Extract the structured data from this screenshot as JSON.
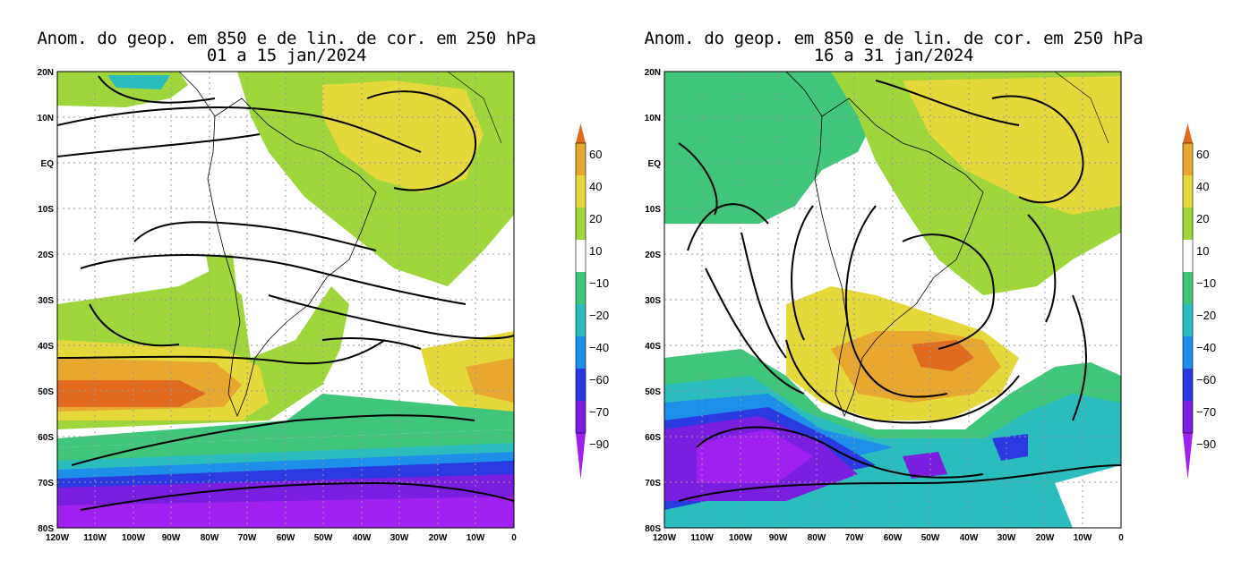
{
  "maps": [
    {
      "title_line1": "Anom. do geop. em 850 e de lin. de cor. em 250 hPa",
      "title_line2": "01 a 15 jan/2024"
    },
    {
      "title_line1": "Anom. do geop. em 850 e de lin. de cor. em 250 hPa",
      "title_line2": "16 a 31 jan/2024"
    }
  ],
  "axes": {
    "lat_labels": [
      "20N",
      "10N",
      "EQ",
      "10S",
      "20S",
      "30S",
      "40S",
      "50S",
      "60S",
      "70S",
      "80S"
    ],
    "lon_labels": [
      "120W",
      "110W",
      "100W",
      "90W",
      "80W",
      "70W",
      "60W",
      "50W",
      "40W",
      "30W",
      "20W",
      "10W",
      "0"
    ]
  },
  "colorbar": {
    "labels": [
      "60",
      "40",
      "20",
      "10",
      "−10",
      "−20",
      "−40",
      "−60",
      "−70",
      "−90"
    ],
    "colors": [
      "#e06b1f",
      "#e8a830",
      "#e4d83a",
      "#9fd63c",
      "#ffffff",
      "#3fc67a",
      "#2bbdbd",
      "#1e8fe8",
      "#2a39e0",
      "#7a1ee0",
      "#a020f0"
    ]
  }
}
